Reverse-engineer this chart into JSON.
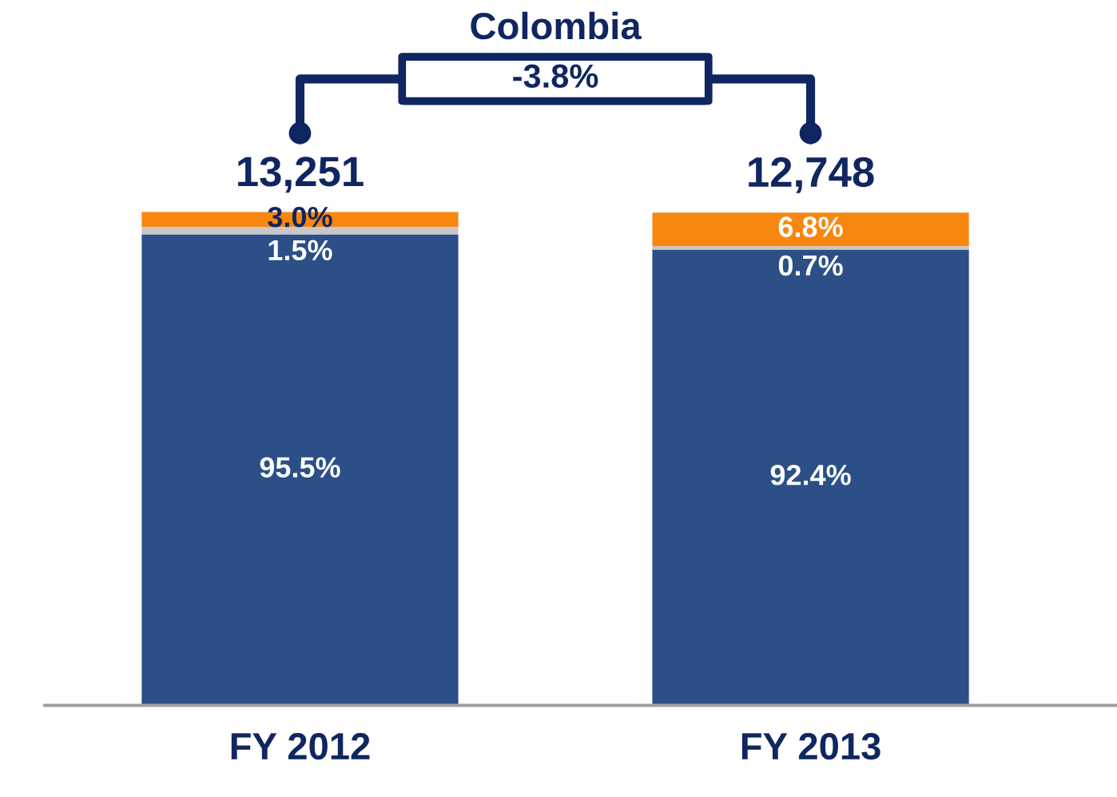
{
  "chart_data": {
    "type": "bar",
    "stacked": true,
    "categories": [
      "FY 2012",
      "FY 2013"
    ],
    "series": [
      {
        "color": "#2b4f86",
        "values": [
          95.5,
          92.4
        ],
        "value_labels": [
          "95.5%",
          "92.4%"
        ]
      },
      {
        "color": "#c8c8c8",
        "values": [
          1.5,
          0.7
        ],
        "value_labels": [
          "1.5%",
          "0.7%"
        ]
      },
      {
        "color": "#f7870f",
        "values": [
          3.0,
          6.8
        ],
        "value_labels": [
          "3.0%",
          "6.8%"
        ]
      }
    ],
    "annotations": [
      "Colombia",
      "-3.8%",
      "13,251",
      "12,748"
    ],
    "legend": false,
    "grid": false
  }
}
